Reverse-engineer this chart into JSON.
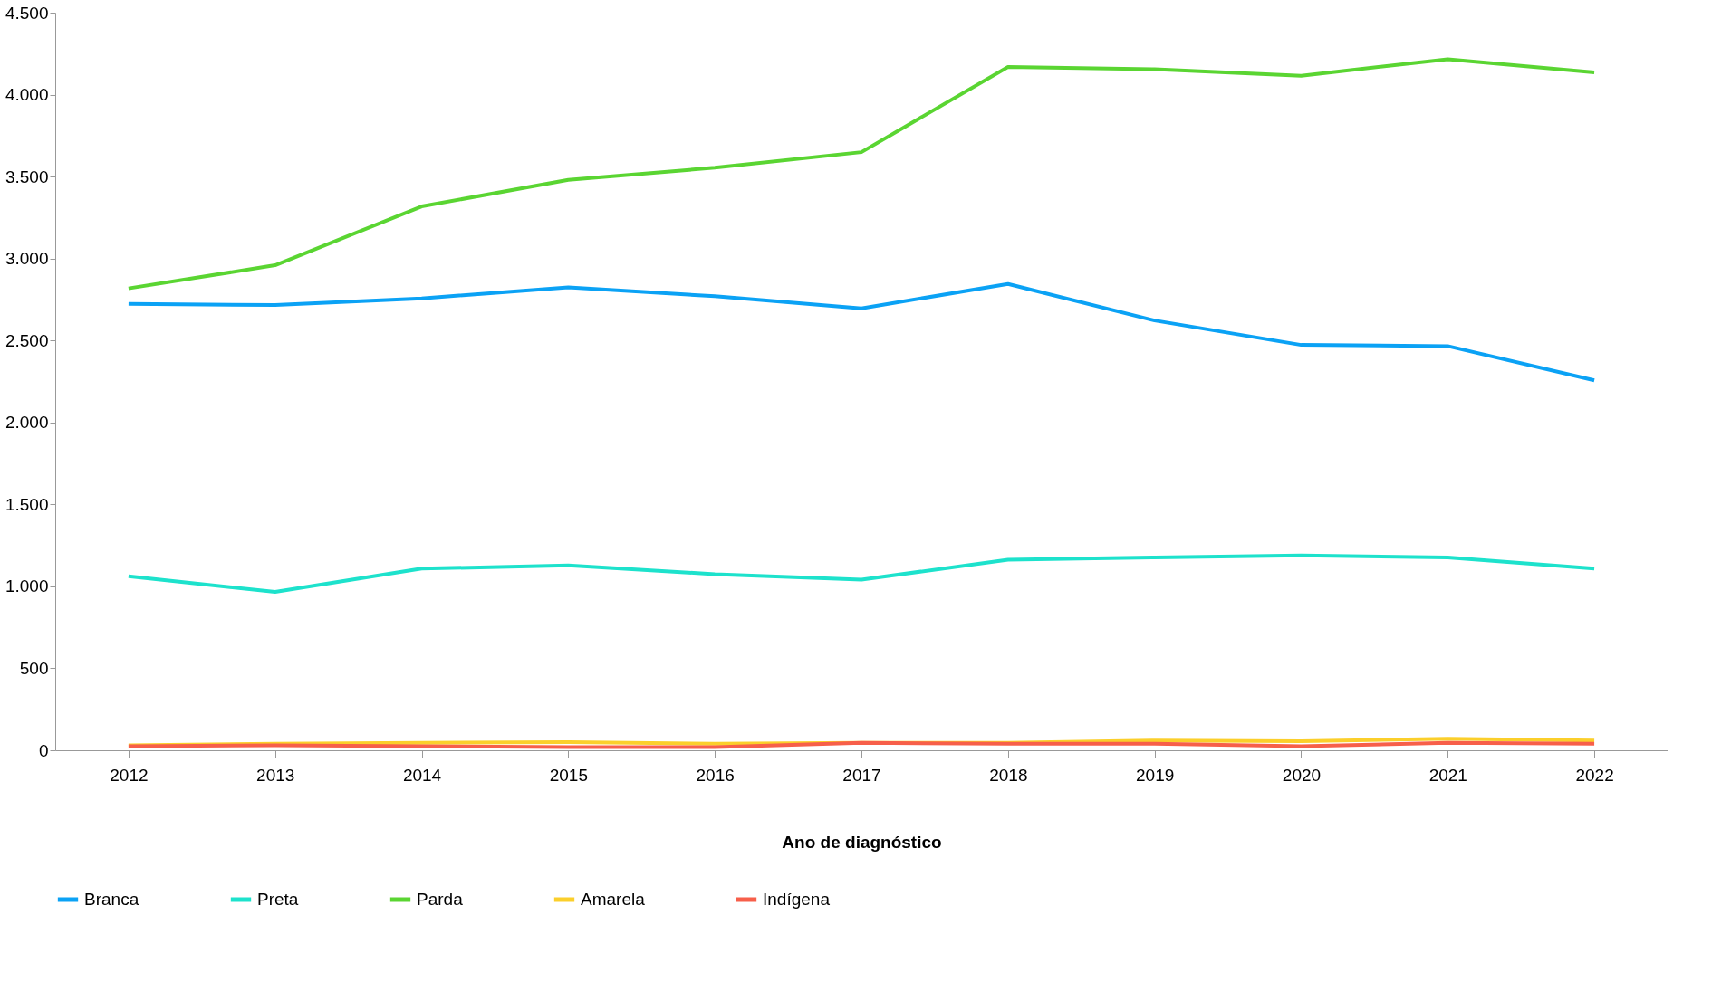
{
  "chart_data": {
    "type": "line",
    "xlabel": "Ano de diagnóstico",
    "categories": [
      "2012",
      "2013",
      "2014",
      "2015",
      "2016",
      "2017",
      "2018",
      "2019",
      "2020",
      "2021",
      "2022"
    ],
    "series": [
      {
        "name": "Branca",
        "color": "#0ba2f5",
        "values": [
          2723,
          2716,
          2757,
          2824,
          2770,
          2696,
          2845,
          2622,
          2473,
          2466,
          2257
        ]
      },
      {
        "name": "Preta",
        "color": "#1de2cc",
        "values": [
          1061,
          966,
          1108,
          1128,
          1074,
          1041,
          1162,
          1176,
          1189,
          1176,
          1108
        ]
      },
      {
        "name": "Parda",
        "color": "#5ad532",
        "values": [
          2818,
          2959,
          3318,
          3480,
          3554,
          3649,
          4169,
          4155,
          4115,
          4216,
          4135
        ]
      },
      {
        "name": "Amarela",
        "color": "#fbcf2b",
        "values": [
          30,
          40,
          45,
          50,
          40,
          45,
          45,
          60,
          55,
          70,
          60
        ]
      },
      {
        "name": "Indígena",
        "color": "#f75f4a",
        "values": [
          25,
          30,
          25,
          20,
          20,
          45,
          40,
          40,
          25,
          45,
          40
        ]
      }
    ],
    "ylim": [
      0,
      4500
    ],
    "yticks": [
      0,
      500,
      {
        "value": 1000,
        "label": "1.000"
      },
      {
        "value": 1500,
        "label": "1.500"
      },
      {
        "value": 2000,
        "label": "2.000"
      },
      {
        "value": 2500,
        "label": "2.500"
      },
      {
        "value": 3000,
        "label": "3.000"
      },
      {
        "value": 3500,
        "label": "3.500"
      },
      {
        "value": 4000,
        "label": "4.000"
      },
      {
        "value": 4500,
        "label": "4.500"
      }
    ],
    "grid": false,
    "legend": "bottom",
    "marker": "none",
    "line_style": "solid"
  }
}
